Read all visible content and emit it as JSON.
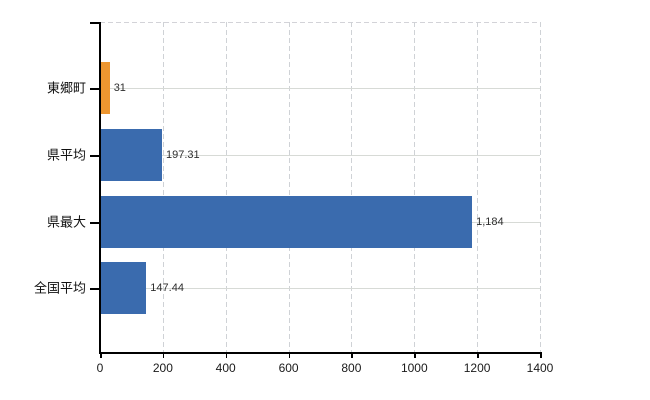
{
  "chart_data": {
    "type": "bar",
    "orientation": "horizontal",
    "title": "",
    "xlabel": "",
    "ylabel": "",
    "categories": [
      "東郷町",
      "県平均",
      "県最大",
      "全国平均"
    ],
    "values": [
      31,
      197.31,
      1184,
      147.44
    ],
    "value_labels": [
      "31",
      "197.31",
      "1,184",
      "147.44"
    ],
    "bar_colors": [
      "#ED9630",
      "#3A6BAE",
      "#3A6BAE",
      "#3A6BAE"
    ],
    "xlim": [
      0,
      1400
    ],
    "x_ticks": [
      0,
      200,
      400,
      600,
      800,
      1000,
      1200,
      1400
    ],
    "x_tick_labels": [
      "0",
      "200",
      "400",
      "600",
      "800",
      "1000",
      "1200",
      "1400"
    ],
    "grid": true,
    "legend": false
  },
  "colors": {
    "accent_orange": "#ED9630",
    "accent_blue": "#3A6BAE",
    "grid_horizontal": "#D7DAD6",
    "grid_vertical": "#CFD2D6",
    "axis": "#000000",
    "value_text": "#2E2E2E"
  }
}
